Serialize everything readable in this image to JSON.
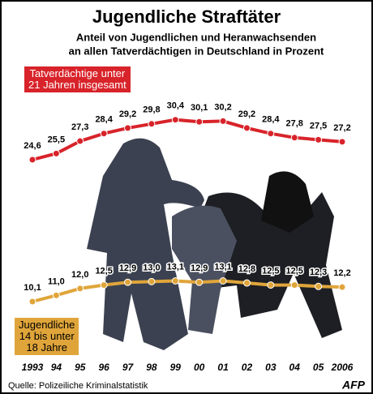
{
  "chart_data": {
    "type": "line",
    "title": "Jugendliche Straftäter",
    "subtitle": [
      "Anteil von Jugendlichen und Heranwachsenden",
      "an allen Tatverdächtigen in Deutschland in Prozent"
    ],
    "categories": [
      "1993",
      "94",
      "95",
      "96",
      "97",
      "98",
      "99",
      "00",
      "01",
      "02",
      "03",
      "04",
      "05",
      "2006"
    ],
    "series": [
      {
        "name": "Tatverdächtige unter\n21 Jahren insgesamt",
        "color": "#d8232a",
        "values": [
          24.6,
          25.5,
          27.3,
          28.4,
          29.2,
          29.8,
          30.4,
          30.1,
          30.2,
          29.2,
          28.4,
          27.8,
          27.5,
          27.2
        ],
        "value_labels": [
          "24,6",
          "25,5",
          "27,3",
          "28,4",
          "29,2",
          "29,8",
          "30,4",
          "30,1",
          "30,2",
          "29,2",
          "28,4",
          "27,8",
          "27,5",
          "27,2"
        ]
      },
      {
        "name": "Jugendliche\n14 bis unter\n18 Jahre",
        "color": "#e0a53a",
        "values": [
          10.1,
          11.0,
          12.0,
          12.5,
          12.9,
          13.0,
          13.1,
          12.9,
          13.1,
          12.8,
          12.5,
          12.5,
          12.3,
          12.2
        ],
        "value_labels": [
          "10,1",
          "11,0",
          "12,0",
          "12,5",
          "12,9",
          "13,0",
          "13,1",
          "12,9",
          "13,1",
          "12,8",
          "12,5",
          "12,5",
          "12,3",
          "12,2"
        ]
      }
    ],
    "source": "Quelle: Polizeiliche Kriminalstatistik",
    "logo": "AFP"
  }
}
